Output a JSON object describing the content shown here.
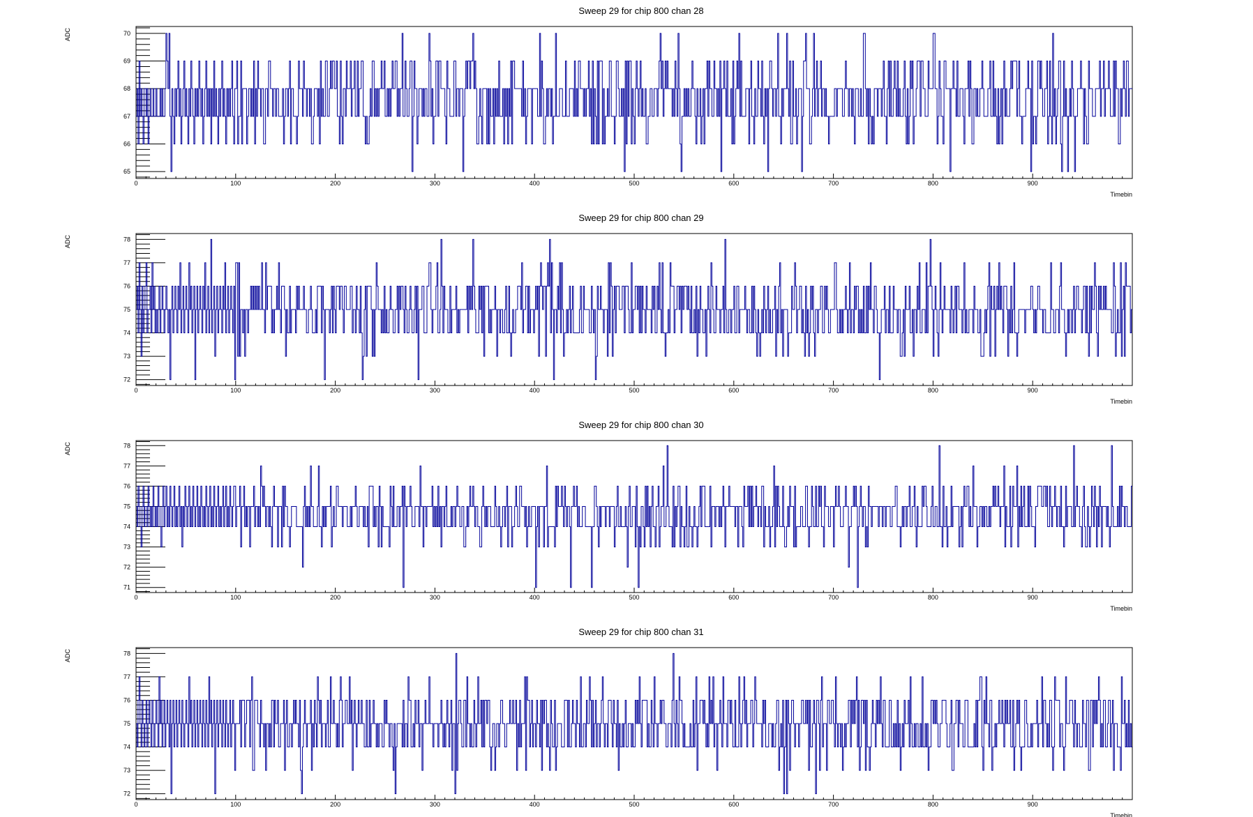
{
  "chart_data": [
    {
      "type": "line",
      "title": "Sweep 29 for chip 800 chan 28",
      "xlabel": "Timebin",
      "ylabel": "ADC",
      "xlim": [
        0,
        1000
      ],
      "ylim": [
        64.75,
        70.25
      ],
      "xticks": [
        0,
        100,
        200,
        300,
        400,
        500,
        600,
        700,
        800,
        900
      ],
      "yticks": [
        65,
        66,
        67,
        68,
        69,
        70
      ],
      "grid": false,
      "series": [
        {
          "color": "#000099",
          "baseline": 67.6,
          "noise": 0.9,
          "min": 65,
          "max": 70,
          "seed": 28,
          "y": [
            67,
            68,
            66,
            69,
            67,
            68,
            67,
            66,
            68,
            68,
            67,
            68,
            66,
            67,
            68,
            67,
            67,
            68,
            67,
            67,
            68,
            67,
            67,
            67,
            68,
            67,
            68,
            67,
            67,
            68,
            70,
            69,
            68,
            70,
            67,
            65,
            68,
            67,
            66,
            68,
            67,
            68,
            69,
            67,
            68,
            66,
            67,
            68,
            69,
            67,
            68,
            67,
            66,
            68,
            67,
            69,
            68,
            67,
            66,
            68,
            67,
            68,
            67,
            69,
            68,
            67,
            68,
            66,
            67,
            68,
            69,
            67,
            68,
            67,
            68,
            66,
            68,
            67,
            69,
            67,
            68,
            67,
            66,
            68,
            67,
            68,
            69,
            67,
            68,
            67,
            66,
            68,
            67,
            68,
            67,
            68,
            69,
            67,
            66,
            68
          ]
        }
      ]
    },
    {
      "type": "line",
      "title": "Sweep 29 for chip 800 chan 29",
      "xlabel": "Timebin",
      "ylabel": "ADC",
      "xlim": [
        0,
        1000
      ],
      "ylim": [
        71.75,
        78.25
      ],
      "xticks": [
        0,
        100,
        200,
        300,
        400,
        500,
        600,
        700,
        800,
        900
      ],
      "yticks": [
        72,
        73,
        74,
        75,
        76,
        77,
        78
      ],
      "grid": false,
      "series": [
        {
          "color": "#000099",
          "baseline": 75.0,
          "noise": 0.95,
          "min": 72,
          "max": 78,
          "seed": 29,
          "y": [
            75,
            76,
            74,
            77,
            75,
            73,
            76,
            74,
            75,
            76,
            77,
            74,
            75,
            75,
            76,
            74,
            77,
            75,
            76,
            74,
            75,
            74,
            75,
            76,
            74,
            75,
            76,
            75,
            74,
            75,
            76,
            75,
            74,
            75,
            72,
            75,
            76,
            74,
            75,
            76,
            75,
            74,
            76,
            75,
            77,
            74,
            75,
            76,
            74,
            75,
            76,
            75,
            74,
            77,
            75,
            76,
            74,
            75,
            76,
            72,
            75,
            76,
            74,
            75,
            76,
            75,
            74,
            76,
            75,
            77,
            74,
            75,
            76,
            74,
            75,
            78,
            74,
            75,
            76,
            73,
            75,
            76,
            74,
            75,
            76,
            75,
            74,
            76,
            75,
            77,
            74,
            75,
            76,
            74,
            75,
            76,
            75,
            74,
            76,
            72
          ]
        }
      ]
    },
    {
      "type": "line",
      "title": "Sweep 29 for chip 800 chan 30",
      "xlabel": "Timebin",
      "ylabel": "ADC",
      "xlim": [
        0,
        1000
      ],
      "ylim": [
        70.75,
        78.25
      ],
      "xticks": [
        0,
        100,
        200,
        300,
        400,
        500,
        600,
        700,
        800,
        900
      ],
      "yticks": [
        71,
        72,
        73,
        74,
        75,
        76,
        77,
        78
      ],
      "grid": false,
      "series": [
        {
          "color": "#000099",
          "baseline": 74.6,
          "noise": 0.85,
          "min": 71,
          "max": 78,
          "seed": 30,
          "y": [
            75,
            74,
            76,
            75,
            74,
            73,
            75,
            76,
            74,
            75,
            75,
            74,
            76,
            75,
            74,
            75,
            74,
            76,
            75,
            74,
            75,
            74,
            76,
            75,
            74,
            73,
            75,
            76,
            74,
            75,
            76,
            74,
            75,
            74,
            76,
            75,
            74,
            75,
            76,
            74,
            75,
            74,
            75,
            76,
            74,
            75,
            73,
            75,
            74,
            76,
            75,
            74,
            75,
            76,
            74,
            75,
            74,
            76,
            75,
            74,
            75,
            76,
            74,
            75,
            74,
            76,
            75,
            74,
            75,
            74,
            76,
            75,
            74,
            75,
            76,
            74,
            75,
            74,
            76,
            75,
            74,
            75,
            76,
            74,
            75,
            74,
            75,
            76,
            74,
            75,
            76,
            74,
            75,
            74,
            76,
            75,
            74,
            75,
            76,
            76
          ]
        }
      ]
    },
    {
      "type": "line",
      "title": "Sweep 29 for chip 800 chan 31",
      "xlabel": "Timebin",
      "ylabel": "ADC",
      "xlim": [
        0,
        1000
      ],
      "ylim": [
        71.75,
        78.25
      ],
      "xticks": [
        0,
        100,
        200,
        300,
        400,
        500,
        600,
        700,
        800,
        900
      ],
      "yticks": [
        72,
        73,
        74,
        75,
        76,
        77,
        78
      ],
      "grid": false,
      "series": [
        {
          "color": "#000099",
          "baseline": 75.0,
          "noise": 0.9,
          "min": 72,
          "max": 78,
          "seed": 31,
          "y": [
            75,
            74,
            76,
            77,
            75,
            74,
            76,
            75,
            74,
            75,
            76,
            74,
            75,
            76,
            75,
            74,
            76,
            75,
            74,
            75,
            76,
            75,
            74,
            77,
            75,
            76,
            74,
            75,
            76,
            74,
            75,
            76,
            75,
            74,
            76,
            72,
            75,
            76,
            74,
            75,
            76,
            74,
            75,
            76,
            75,
            74,
            76,
            75,
            74,
            75,
            76,
            75,
            74,
            77,
            75,
            76,
            74,
            75,
            76,
            74,
            75,
            76,
            74,
            75,
            76,
            75,
            74,
            76,
            75,
            74,
            76,
            75,
            74,
            77,
            75,
            76,
            74,
            75,
            76,
            72,
            75,
            76,
            74,
            75,
            76,
            75,
            74,
            76,
            75,
            74,
            76,
            75,
            74,
            75,
            76,
            74,
            75,
            76,
            75,
            73
          ]
        }
      ]
    }
  ]
}
